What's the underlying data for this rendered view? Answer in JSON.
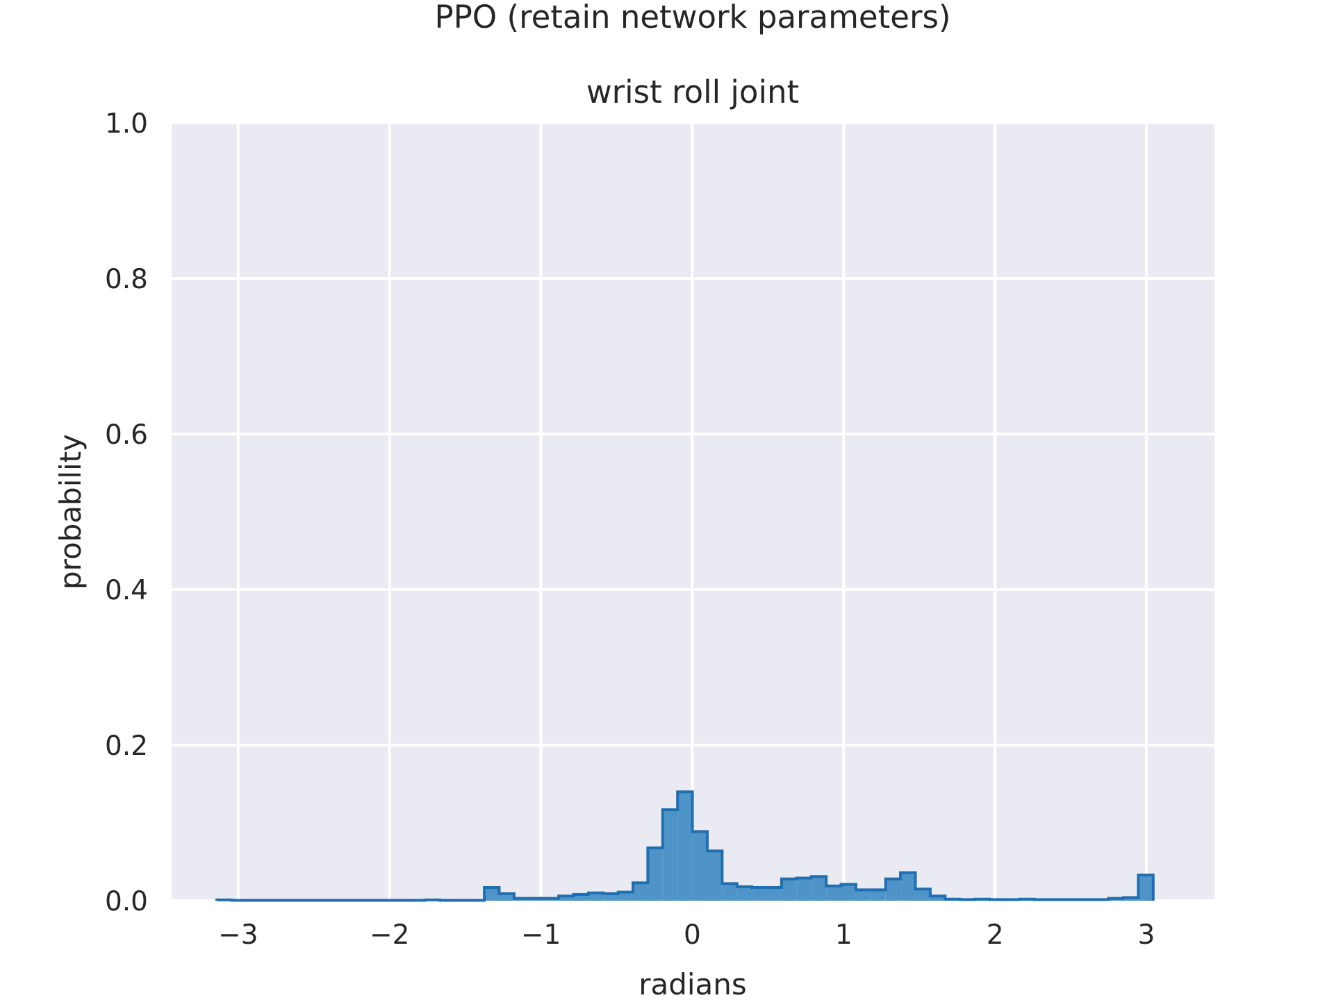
{
  "chart_data": {
    "type": "histogram",
    "suptitle": "PPO (retain network parameters)",
    "title": "wrist roll joint",
    "xlabel": "radians",
    "ylabel": "probability",
    "xlim": [
      -3.44,
      3.45
    ],
    "ylim": [
      0,
      1.0
    ],
    "xticks": [
      -3,
      -2,
      -1,
      0,
      1,
      2,
      3
    ],
    "xtick_labels": [
      "−3",
      "−2",
      "−1",
      "0",
      "1",
      "2",
      "3"
    ],
    "yticks": [
      0,
      0.2,
      0.4,
      0.6,
      0.8,
      1.0
    ],
    "ytick_labels": [
      "0.0",
      "0.2",
      "0.4",
      "0.6",
      "0.8",
      "1.0"
    ],
    "grid": true,
    "background_color": "#eaeaf2",
    "bar_fill_color": "#4e94c8",
    "bar_edge_color": "#1f6fb0",
    "bin_start": -3.1416,
    "bin_width": 0.0982,
    "values": [
      0.001,
      0.0005,
      0.0005,
      0.0005,
      0.0005,
      0.0005,
      0.0005,
      0.0005,
      0.0005,
      0.0005,
      0.0005,
      0.0005,
      0.0005,
      0.0005,
      0.001,
      0.0005,
      0.0005,
      0.0005,
      0.017,
      0.009,
      0.003,
      0.003,
      0.003,
      0.006,
      0.008,
      0.01,
      0.009,
      0.011,
      0.023,
      0.068,
      0.117,
      0.14,
      0.089,
      0.064,
      0.022,
      0.018,
      0.017,
      0.017,
      0.028,
      0.029,
      0.031,
      0.019,
      0.021,
      0.014,
      0.014,
      0.028,
      0.036,
      0.015,
      0.006,
      0.002,
      0.0015,
      0.002,
      0.0015,
      0.0015,
      0.002,
      0.0015,
      0.0015,
      0.0015,
      0.0015,
      0.0015,
      0.003,
      0.004,
      0.033
    ]
  }
}
